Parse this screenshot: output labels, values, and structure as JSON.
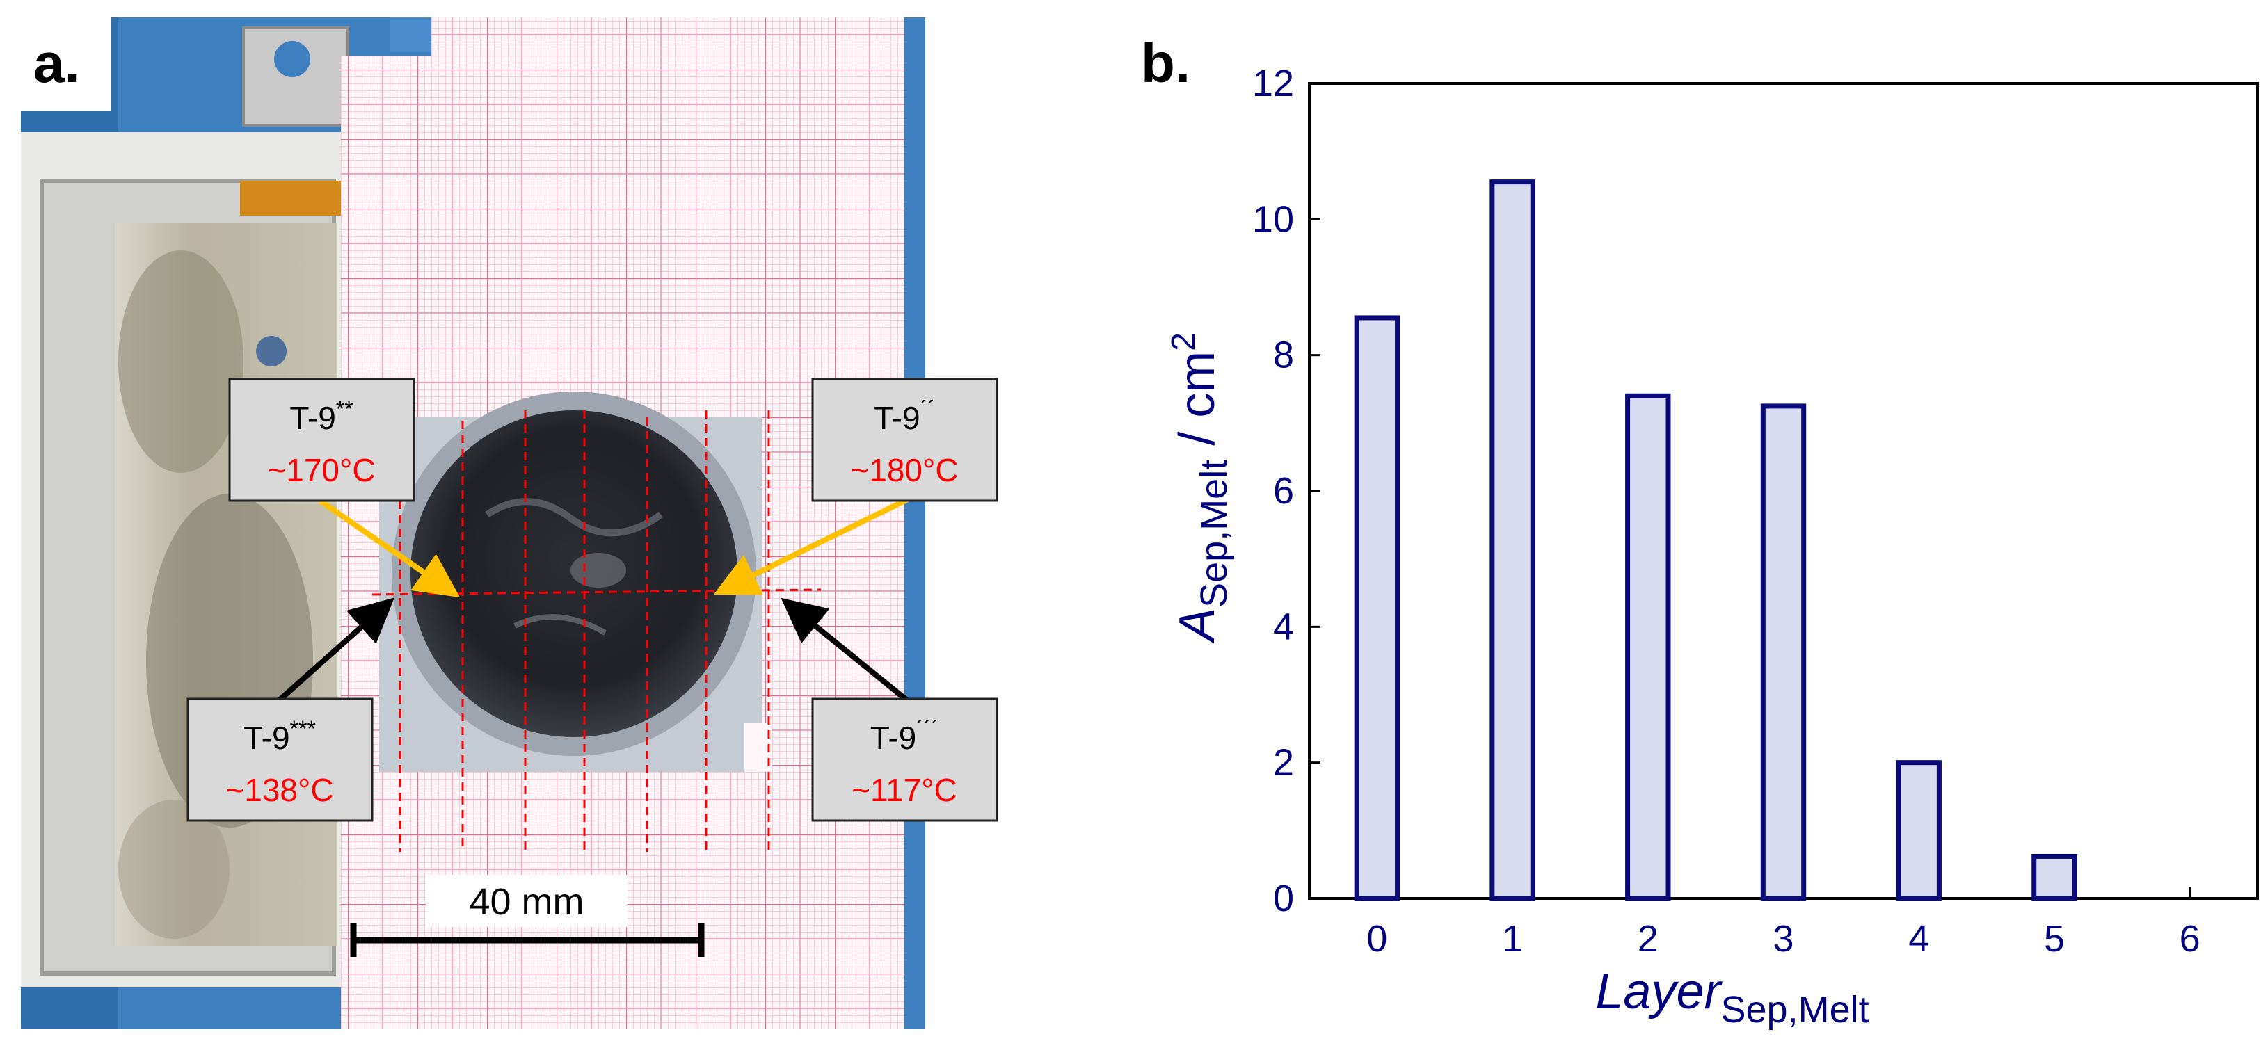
{
  "panel_a": {
    "label": "a.",
    "scale_bar_label": "40 mm",
    "callouts": [
      {
        "id": "t9-2star",
        "name": "T-9",
        "sup": "**",
        "temp": "~170°C"
      },
      {
        "id": "t9-dprime",
        "name": "T-9",
        "sup": "´´",
        "temp": "~180°C"
      },
      {
        "id": "t9-3star",
        "name": "T-9",
        "sup": "***",
        "temp": "~138°C"
      },
      {
        "id": "t9-tprime",
        "name": "T-9",
        "sup": "´´´",
        "temp": "~117°C"
      }
    ],
    "colors": {
      "temp_text": "#ff0000",
      "arrow_top": "#ffc000",
      "arrow_bottom": "#000000",
      "guide_lines": "#ff0000"
    }
  },
  "panel_b": {
    "label": "b."
  },
  "chart_data": {
    "type": "bar",
    "categories": [
      "0",
      "1",
      "2",
      "3",
      "4",
      "5",
      "6"
    ],
    "values": [
      8.55,
      10.55,
      7.4,
      7.25,
      2.0,
      0.62,
      0.0
    ],
    "ylim": [
      0,
      12
    ],
    "yticks": [
      "0",
      "2",
      "4",
      "6",
      "8",
      "10",
      "12"
    ],
    "ylabel": {
      "main": "A",
      "sub": "Sep,Melt",
      "unit": " / cm",
      "unit_sup": "2"
    },
    "xlabel": {
      "main": "Layer",
      "sub": "Sep,Melt"
    },
    "colors": {
      "axis": "#00007f",
      "bar_edge": "#0a0a78",
      "bar_fill": "#d9dbee"
    }
  }
}
